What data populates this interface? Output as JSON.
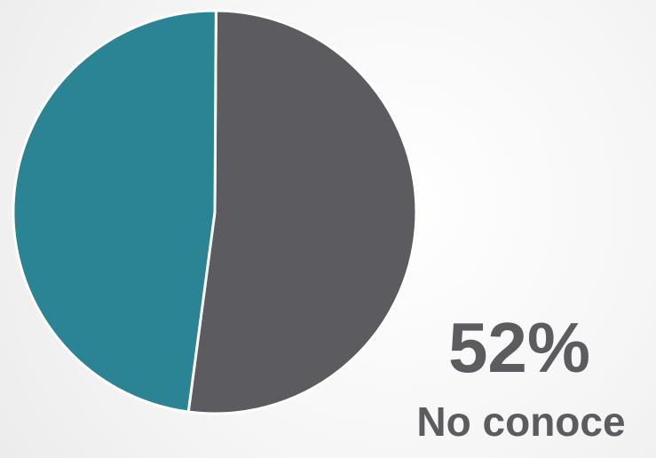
{
  "chart_data": {
    "type": "pie",
    "slices": [
      {
        "value": 52,
        "color": "#5b5b60"
      },
      {
        "value": 48,
        "color": "#2a8494"
      }
    ],
    "highlight": {
      "value_label": "52%",
      "label": "No conoce"
    },
    "legend": "none",
    "slice_border_color": "#ffffff"
  }
}
